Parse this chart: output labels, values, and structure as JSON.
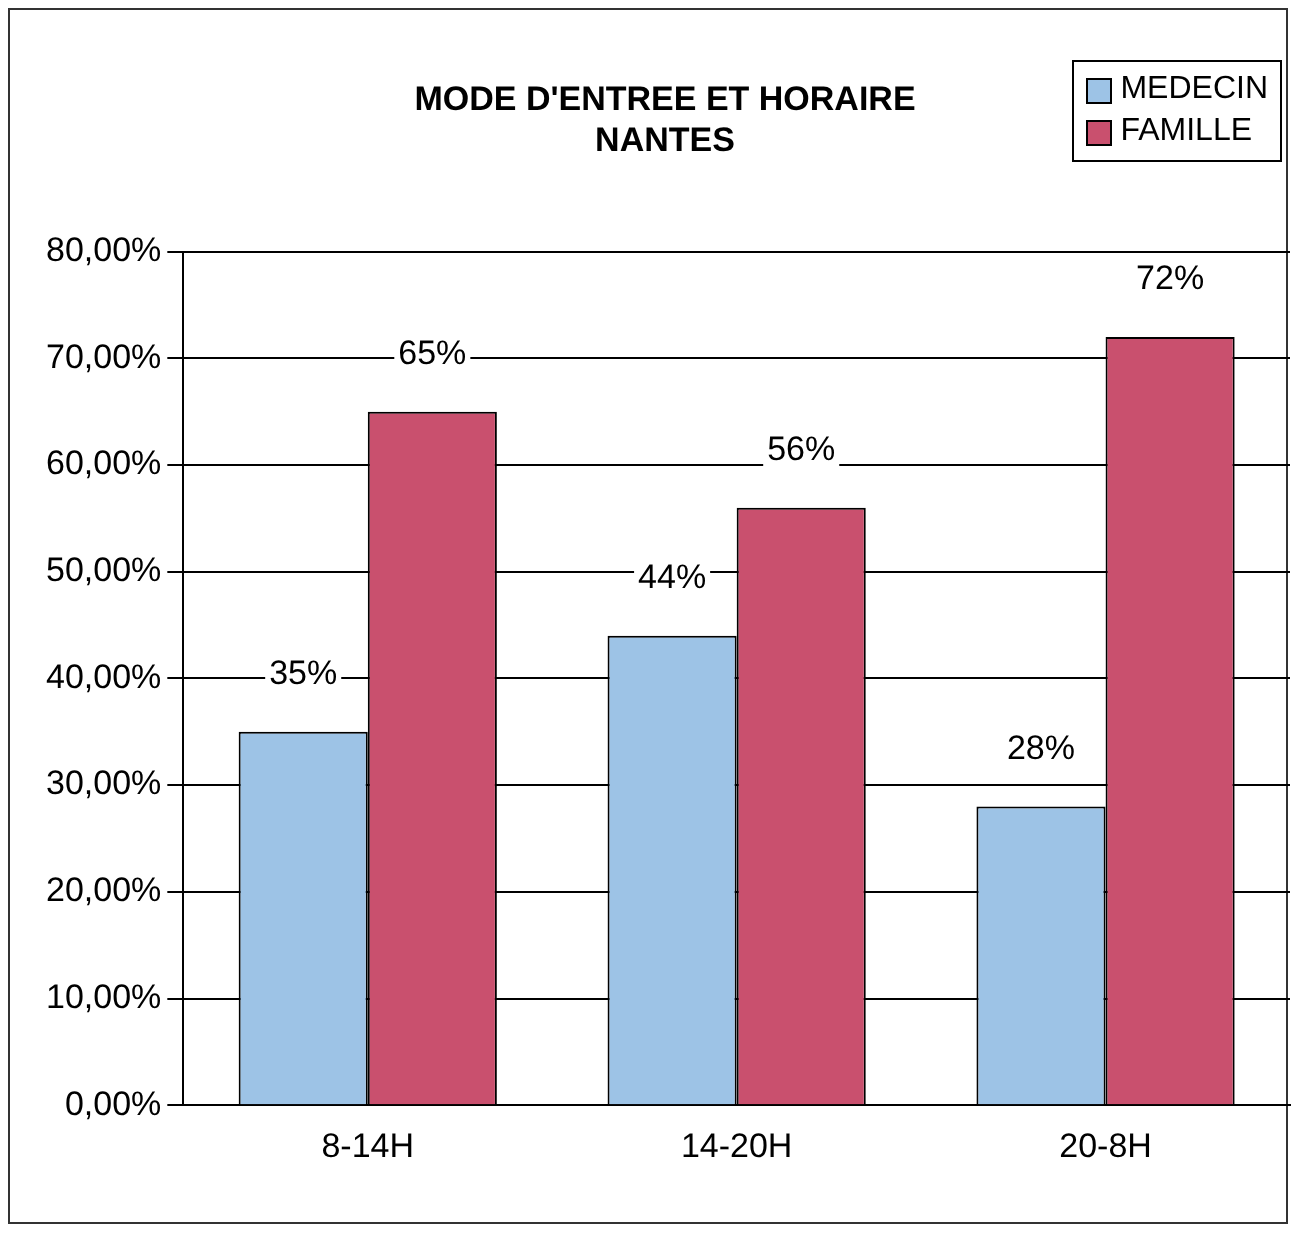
{
  "chart_data": {
    "type": "bar",
    "title": "MODE D'ENTREE ET HORAIRE\nNANTES",
    "categories": [
      "8-14H",
      "14-20H",
      "20-8H"
    ],
    "series": [
      {
        "name": "MEDECIN",
        "color": "#9dc3e6",
        "values": [
          35,
          44,
          28
        ],
        "value_labels": [
          "35%",
          "44%",
          "28%"
        ]
      },
      {
        "name": "FAMILLE",
        "color": "#c9506e",
        "values": [
          65,
          56,
          72
        ],
        "value_labels": [
          "65%",
          "56%",
          "72%"
        ]
      }
    ],
    "ylim": [
      0,
      80
    ],
    "yticks": [
      {
        "value": 0,
        "label": "0,00%"
      },
      {
        "value": 10,
        "label": "10,00%"
      },
      {
        "value": 20,
        "label": "20,00%"
      },
      {
        "value": 30,
        "label": "30,00%"
      },
      {
        "value": 40,
        "label": "40,00%"
      },
      {
        "value": 50,
        "label": "50,00%"
      },
      {
        "value": 60,
        "label": "60,00%"
      },
      {
        "value": 70,
        "label": "70,00%"
      },
      {
        "value": 80,
        "label": "80,00%"
      }
    ],
    "grid": "y",
    "legend": "top right"
  }
}
